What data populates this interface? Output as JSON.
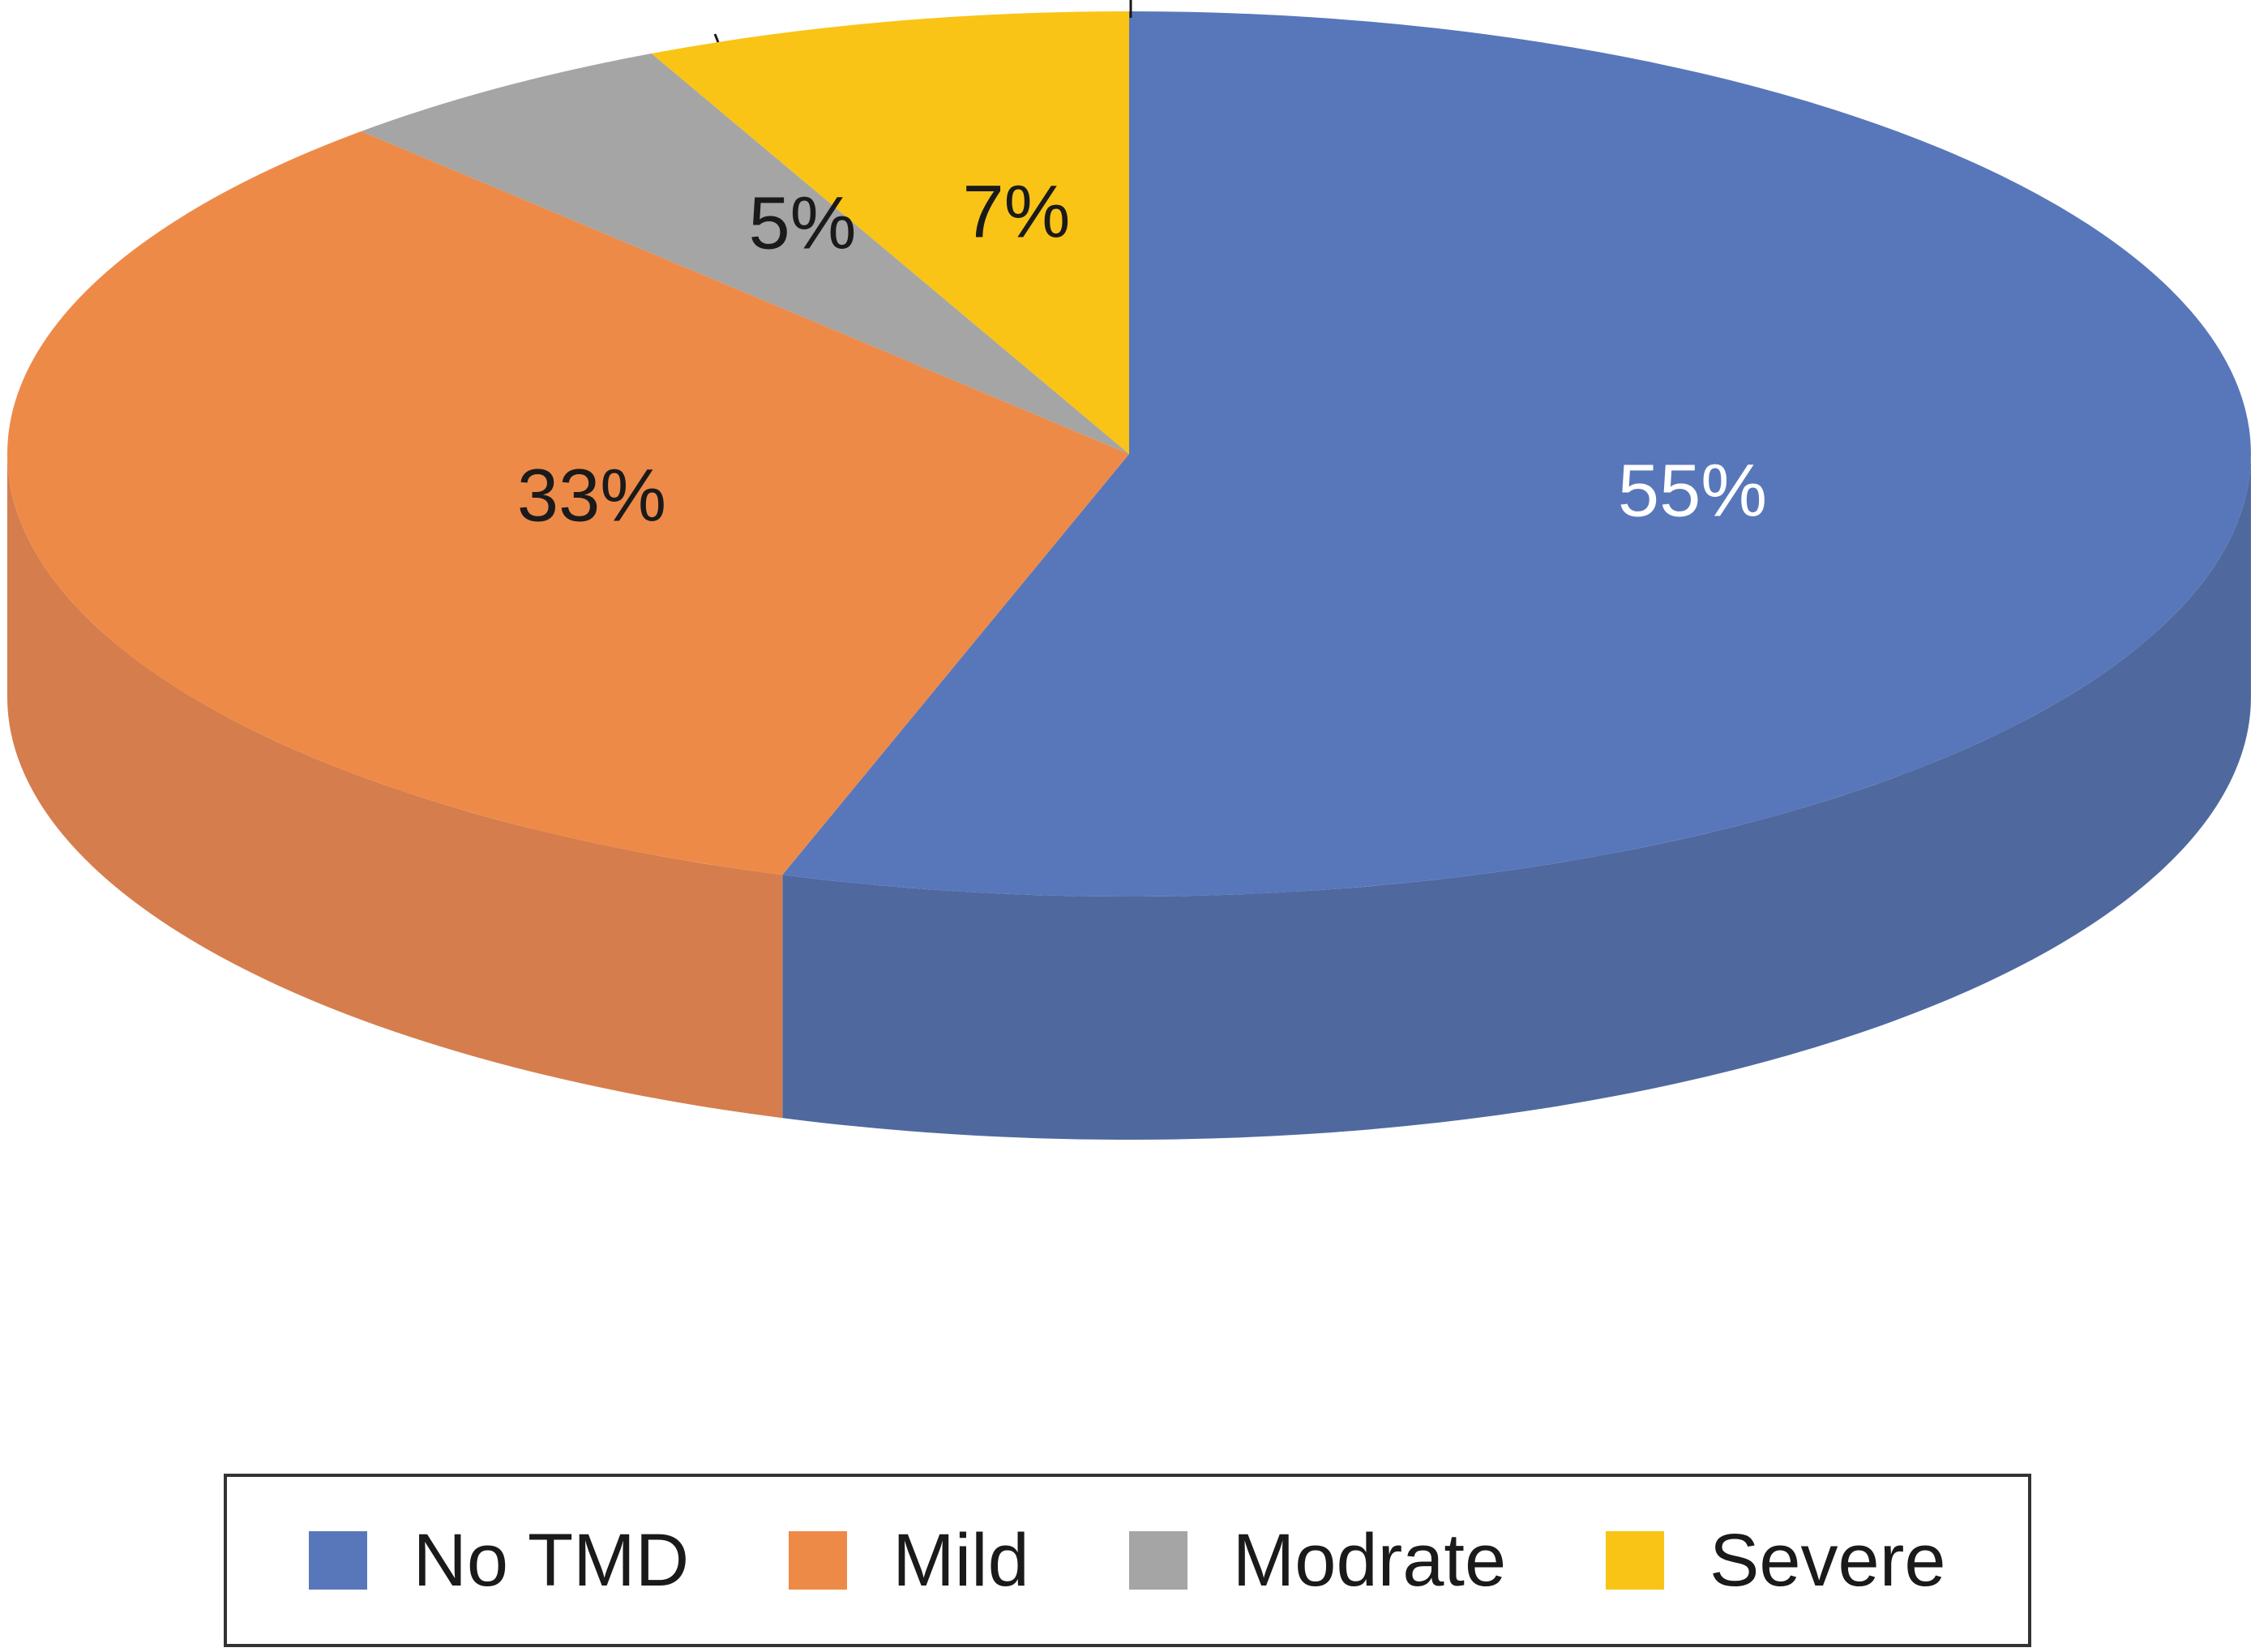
{
  "chart_data": {
    "type": "pie",
    "categories": [
      "No TMD",
      "Mild",
      "Modrate",
      "Severe"
    ],
    "values": [
      55,
      33,
      5,
      7
    ],
    "labels": [
      "55%",
      "33%",
      "5%",
      "7%"
    ],
    "colors": [
      "#5877BA",
      "#EE8A48",
      "#A5A5A5",
      "#F9C415"
    ],
    "side_colors": [
      "#4F699F",
      "#D67D4D",
      "#8F8F8F",
      "#D8A912"
    ],
    "label_colors": [
      "#ffffff",
      "#1a1a1a",
      "#1a1a1a",
      "#1a1a1a"
    ],
    "legend_placement": "bottom",
    "style": "3d"
  }
}
